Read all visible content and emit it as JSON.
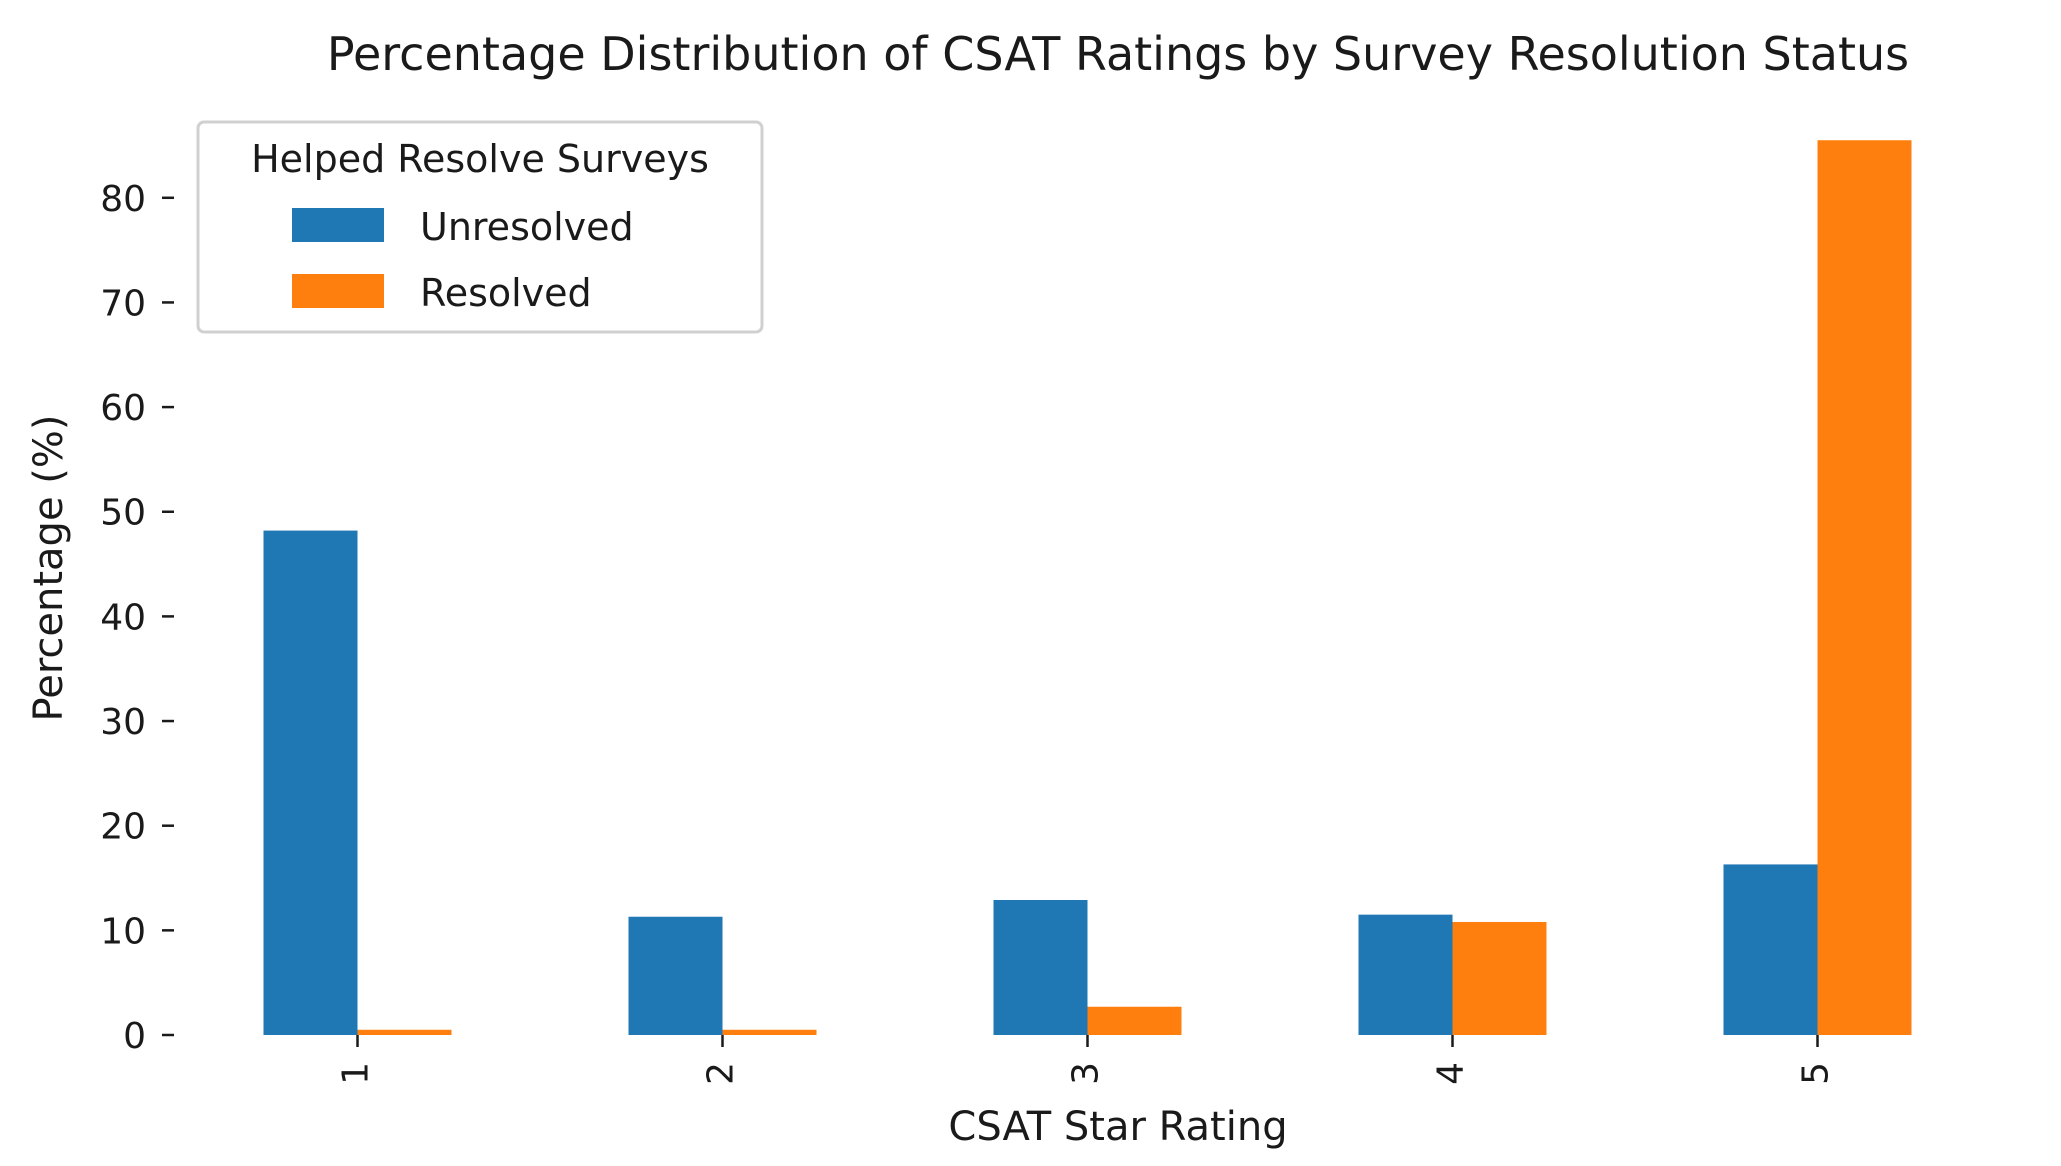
{
  "chart_data": {
    "type": "bar",
    "title": "Percentage Distribution of CSAT Ratings by Survey Resolution Status",
    "xlabel": "CSAT Star Rating",
    "ylabel": "Percentage (%)",
    "categories": [
      "1",
      "2",
      "3",
      "4",
      "5"
    ],
    "series": [
      {
        "name": "Unresolved",
        "color": "#1f77b4",
        "values": [
          48.2,
          11.3,
          12.9,
          11.5,
          16.3
        ]
      },
      {
        "name": "Resolved",
        "color": "#ff7f0e",
        "values": [
          0.5,
          0.5,
          2.7,
          10.8,
          85.5
        ]
      }
    ],
    "ylim": [
      0,
      86
    ],
    "yticks": [
      0,
      10,
      20,
      30,
      40,
      50,
      60,
      70,
      80
    ],
    "grid": false,
    "legend": {
      "title": "Helped Resolve Surveys",
      "placement": "top-left"
    }
  }
}
